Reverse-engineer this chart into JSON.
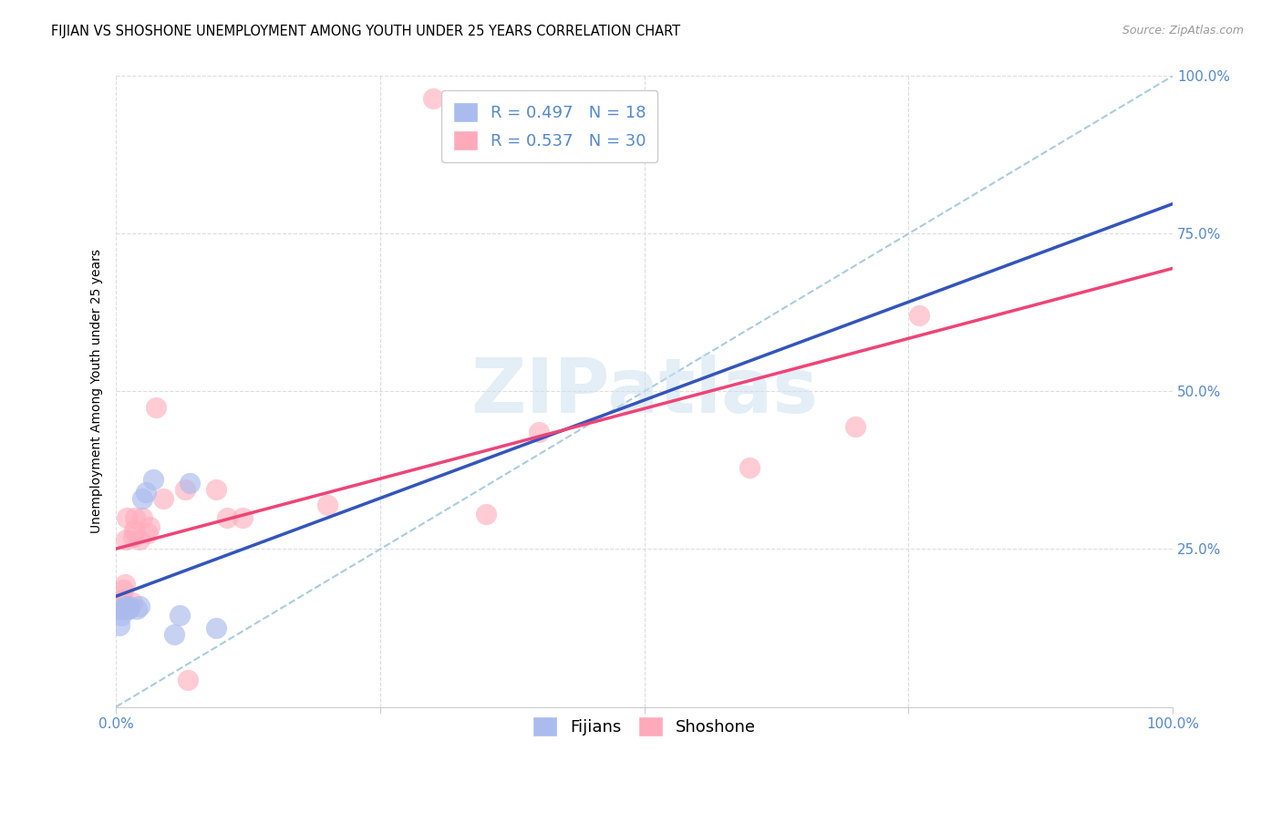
{
  "title": "FIJIAN VS SHOSHONE UNEMPLOYMENT AMONG YOUTH UNDER 25 YEARS CORRELATION CHART",
  "source": "Source: ZipAtlas.com",
  "ylabel_label": "Unemployment Among Youth under 25 years",
  "fijian_R": 0.497,
  "fijian_N": 18,
  "shoshone_R": 0.537,
  "shoshone_N": 30,
  "fijian_color": "#aabbee",
  "fijian_edge_color": "#8899cc",
  "shoshone_color": "#ffaabb",
  "shoshone_edge_color": "#dd8899",
  "fijian_line_color": "#3355bb",
  "shoshone_line_color": "#ee4477",
  "ref_line_color": "#aaccdd",
  "background_color": "#ffffff",
  "tick_color": "#5588cc",
  "fijians_x": [
    0.003,
    0.005,
    0.006,
    0.007,
    0.008,
    0.009,
    0.01,
    0.012,
    0.013,
    0.02,
    0.022,
    0.025,
    0.028,
    0.035,
    0.055,
    0.06,
    0.07,
    0.095
  ],
  "fijians_y": [
    0.13,
    0.145,
    0.155,
    0.155,
    0.155,
    0.16,
    0.155,
    0.155,
    0.16,
    0.155,
    0.16,
    0.33,
    0.34,
    0.36,
    0.115,
    0.145,
    0.355,
    0.125
  ],
  "shoshone_x": [
    0.003,
    0.005,
    0.006,
    0.007,
    0.008,
    0.009,
    0.01,
    0.012,
    0.015,
    0.016,
    0.017,
    0.018,
    0.022,
    0.025,
    0.03,
    0.032,
    0.038,
    0.045,
    0.065,
    0.068,
    0.095,
    0.105,
    0.12,
    0.2,
    0.35,
    0.4,
    0.6,
    0.7,
    0.76,
    0.3
  ],
  "shoshone_y": [
    0.155,
    0.16,
    0.17,
    0.185,
    0.195,
    0.265,
    0.3,
    0.155,
    0.165,
    0.27,
    0.28,
    0.3,
    0.265,
    0.3,
    0.275,
    0.285,
    0.475,
    0.33,
    0.345,
    0.042,
    0.345,
    0.3,
    0.3,
    0.32,
    0.305,
    0.435,
    0.38,
    0.445,
    0.62,
    0.965
  ],
  "xlim": [
    0,
    1
  ],
  "ylim": [
    0,
    1
  ],
  "title_fontsize": 10.5,
  "axis_label_fontsize": 10,
  "tick_fontsize": 11,
  "legend_fontsize": 13
}
